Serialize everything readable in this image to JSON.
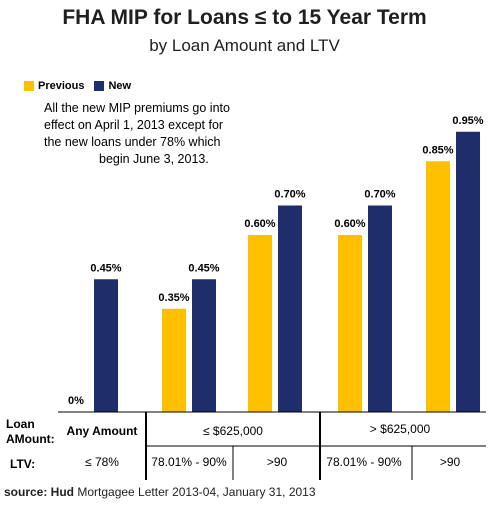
{
  "title": "FHA MIP for Loans ≤  to 15 Year Term",
  "subtitle": "by Loan Amount and LTV",
  "colors": {
    "previous": "#FFC000",
    "new": "#1F2D6B"
  },
  "note_lines": [
    "All the new MIP premiums go into",
    "effect on April 1, 2013  except for",
    "the new loans under 78% which",
    "begin June 3, 2013."
  ],
  "row_labels": {
    "loan_line1": "Loan",
    "loan_line2": "AMount:",
    "ltv": "LTV:"
  },
  "source": {
    "bold": "source: Hud",
    "rest": " Mortgagee Letter 2013-04, January 31, 2013"
  },
  "chart_data": {
    "type": "bar",
    "categories": [
      "≤ 78%",
      "78.01%  - 90%",
      ">90",
      "78.01% - 90%",
      ">90"
    ],
    "groups": [
      {
        "label": "Any Amount",
        "categories": [
          0
        ]
      },
      {
        "label": "≤ $625,000",
        "categories": [
          1,
          2
        ]
      },
      {
        "label": "> $625,000",
        "categories": [
          3,
          4
        ]
      }
    ],
    "series": [
      {
        "name": "Previous",
        "values": [
          0,
          0.35,
          0.6,
          0.6,
          0.85
        ],
        "labels": [
          "0%",
          "0.35%",
          "0.60%",
          "0.60%",
          "0.85%"
        ]
      },
      {
        "name": "New",
        "values": [
          0.45,
          0.45,
          0.7,
          0.7,
          0.95
        ],
        "labels": [
          "0.45%",
          "0.45%",
          "0.70%",
          "0.70%",
          "0.95%"
        ]
      }
    ],
    "ylim": [
      0,
      1.0
    ],
    "grid": false,
    "legend": "top-left"
  }
}
